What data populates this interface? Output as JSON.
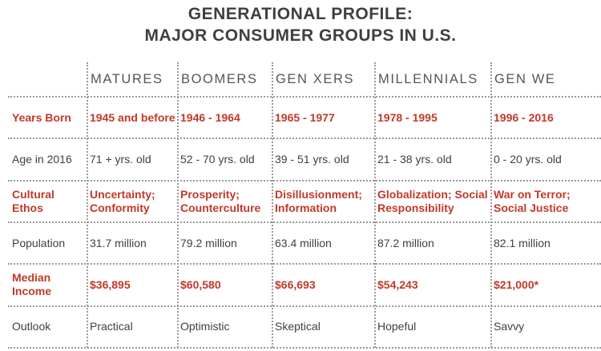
{
  "title": {
    "line1": "GENERATIONAL PROFILE:",
    "line2": "MAJOR CONSUMER GROUPS IN U.S."
  },
  "table": {
    "columns": [
      "MATURES",
      "BOOMERS",
      "GEN XERS",
      "MILLENNIALS",
      "GEN WE"
    ],
    "rows": [
      {
        "label": "Years Born",
        "highlight": true,
        "cells": [
          "1945 and before",
          "1946 - 1964",
          "1965 - 1977",
          "1978 - 1995",
          "1996 - 2016"
        ]
      },
      {
        "label": "Age in 2016",
        "highlight": false,
        "cells": [
          "71 + yrs. old",
          "52 - 70 yrs. old",
          "39 - 51 yrs. old",
          "21 - 38 yrs. old",
          "0 - 20 yrs. old"
        ]
      },
      {
        "label": "Cultural Ethos",
        "highlight": true,
        "cells": [
          "Uncertainty; Conformity",
          "Prosperity; Counterculture",
          "Disillusionment; Information",
          "Globalization; Social Responsibility",
          "War on Terror; Social Justice"
        ]
      },
      {
        "label": "Population",
        "highlight": false,
        "cells": [
          "31.7 million",
          "79.2 million",
          "63.4 million",
          "87.2 million",
          "82.1 million"
        ]
      },
      {
        "label": "Median Income",
        "highlight": true,
        "cells": [
          "$36,895",
          "$60,580",
          "$66,693",
          "$54,243",
          "$21,000*"
        ]
      },
      {
        "label": "Outlook",
        "highlight": false,
        "cells": [
          "Practical",
          "Optimistic",
          "Skeptical",
          "Hopeful",
          "Savvy"
        ]
      }
    ]
  },
  "colors": {
    "highlight": "#c0392b",
    "text": "#404040",
    "title": "#3f3f3f",
    "gridline": "#9a9a9a"
  }
}
